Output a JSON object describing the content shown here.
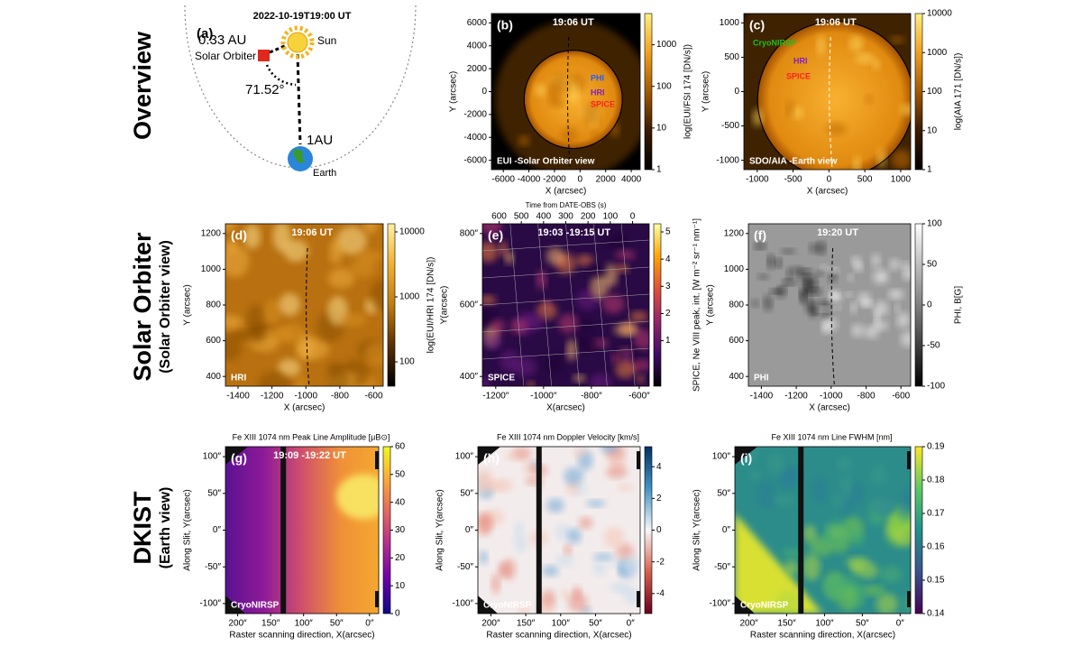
{
  "row_labels": [
    {
      "title": "Overview"
    },
    {
      "title": "Solar Orbiter",
      "subtitle": "(Solar Orbiter view)"
    },
    {
      "title": "DKIST",
      "subtitle": "(Earth view)"
    }
  ],
  "panel_a": {
    "label": "(a)",
    "time": "2022-10-19T19:00 UT",
    "distance_orbiter": "0.33 AU",
    "sun": "Sun",
    "orbiter": "Solar Orbiter",
    "angle": "71.52°",
    "distance_earth": "1AU",
    "earth": "Earth"
  },
  "panels": [
    {
      "label": "(b)",
      "time": "19:06 UT",
      "caption": "EUI -Solar Orbiter view",
      "annotations": [
        "PHI",
        "HRI",
        "SPICE"
      ],
      "yticks": [
        "6000",
        "4000",
        "2000",
        "0",
        "-2000",
        "-4000",
        "-6000"
      ],
      "xticks": [
        "-6000",
        "-4000",
        "-2000",
        "0",
        "2000",
        "4000"
      ],
      "xlabel": "X (arcsec)",
      "ylabel": "Y (arcsec)",
      "colorbar": {
        "ticks": [
          "1000",
          "100",
          "10",
          "1"
        ],
        "label": "log(EUI/FSI 174 [DN/s])"
      }
    },
    {
      "label": "(c)",
      "time": "19:06 UT",
      "caption": "SDO/AIA -Earth view",
      "annotations": [
        "CryoNIRSP",
        "HRI",
        "SPICE"
      ],
      "yticks": [
        "1000",
        "500",
        "0",
        "-500",
        "-1000"
      ],
      "xticks": [
        "-1000",
        "-500",
        "0",
        "500",
        "1000"
      ],
      "xlabel": "X (arcsec)",
      "ylabel": "Y (arcsec)",
      "colorbar": {
        "ticks": [
          "10000",
          "1000",
          "100",
          "10",
          "1"
        ],
        "label": "log(AIA 171 [DN/s])"
      }
    },
    {
      "label": "(d)",
      "time": "19:06 UT",
      "caption": "HRI",
      "yticks": [
        "1200",
        "1000",
        "800",
        "600",
        "400"
      ],
      "xticks": [
        "-1400",
        "-1200",
        "-1000",
        "-800",
        "-600"
      ],
      "xlabel": "X (arcsec)",
      "ylabel": "Y (arcsec)",
      "colorbar": {
        "ticks": [
          "10000",
          "1000",
          "100"
        ],
        "label": "log(EUI/HRI 174 [DN/s])"
      }
    },
    {
      "label": "(e)",
      "time": "19:03 -19:15 UT",
      "caption": "SPICE",
      "top_axis": {
        "label": "Time from DATE-OBS (s)",
        "ticks": [
          "600",
          "500",
          "400",
          "300",
          "200",
          "100",
          "0"
        ]
      },
      "yticks": [
        "800″",
        "600″",
        "400″"
      ],
      "xticks": [
        "-1200″",
        "-1000″",
        "-800″",
        "-600″"
      ],
      "xlabel": "X(arcsec)",
      "ylabel": "Y(arcsec)",
      "colorbar": {
        "ticks": [
          "5",
          "4",
          "3",
          "2",
          "1"
        ],
        "label": "SPICE, Ne VIII peak, int. [W m⁻² sr⁻¹ nm⁻¹]"
      }
    },
    {
      "label": "(f)",
      "time": "19:20 UT",
      "caption": "PHI",
      "yticks": [
        "1200",
        "1000",
        "800",
        "600",
        "400"
      ],
      "xticks": [
        "-1400",
        "-1200",
        "-1000",
        "-800",
        "-600"
      ],
      "xlabel": "X (arcsec)",
      "ylabel": "Y (arcsec)",
      "colorbar": {
        "ticks": [
          "100",
          "50",
          "0",
          "-50",
          "-100"
        ],
        "label": "PHI, B[G]"
      }
    },
    {
      "title": "Fe XIII 1074 nm Peak Line Amplitude [μB⊙]",
      "label": "(g)",
      "time": "19:09 -19:22 UT",
      "caption": "CryoNIRSP",
      "yticks": [
        "100″",
        "50″",
        "0″",
        "-50″",
        "-100″"
      ],
      "xticks": [
        "200″",
        "150″",
        "100″",
        "50″",
        "0″"
      ],
      "xlabel": "Raster scanning direction, X(arcsec)",
      "ylabel": "Along Slit, Y(arcsec)",
      "colorbar": {
        "ticks": [
          "60",
          "50",
          "40",
          "30",
          "20",
          "10",
          "0"
        ]
      }
    },
    {
      "title": "Fe XIII 1074 nm Doppler Velocity [km/s]",
      "label": "(h)",
      "caption": "CryoNIRSP",
      "yticks": [
        "100″",
        "50″",
        "0″",
        "-50″",
        "-100″"
      ],
      "xticks": [
        "200″",
        "150″",
        "100″",
        "50″",
        "0″"
      ],
      "xlabel": "Raster scanning direction, X(arcsec)",
      "ylabel": "Along Slit, Y(arcsec)",
      "colorbar": {
        "ticks": [
          "4",
          "2",
          "0",
          "-2",
          "-4"
        ]
      }
    },
    {
      "title": "Fe XIII 1074 nm Line FWHM [nm]",
      "label": "(i)",
      "caption": "CryoNIRSP",
      "yticks": [
        "100″",
        "50″",
        "0″",
        "-50″",
        "-100″"
      ],
      "xticks": [
        "200″",
        "150″",
        "100″",
        "50″",
        "0″"
      ],
      "xlabel": "Raster scanning direction, X(arcsec)",
      "ylabel": "Along Slit, Y(arcsec)",
      "colorbar": {
        "ticks": [
          "0.19",
          "0.18",
          "0.17",
          "0.16",
          "0.15",
          "0.14"
        ]
      }
    }
  ]
}
